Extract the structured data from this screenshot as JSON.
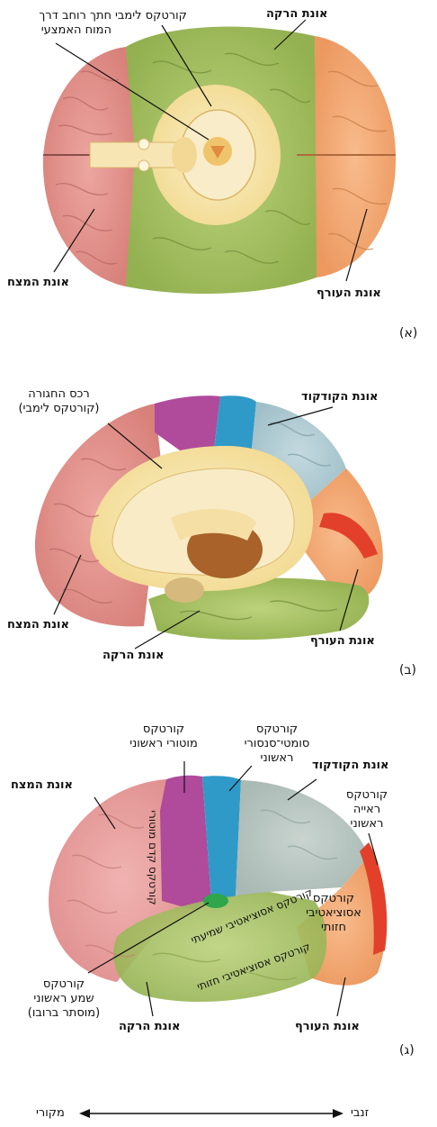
{
  "panelA": {
    "letter": "(א)",
    "labels": {
      "midbrain": [
        "חתך רוחב דרך",
        "המוח האמצעי"
      ],
      "limbic": "קורטקס לימבי",
      "temporal": "אונת הרקה",
      "frontal": "אונת המצח",
      "occipital": "אונת העורף"
    }
  },
  "panelB": {
    "letter": "(ב)",
    "labels": {
      "cingulate": [
        "רכס החגורה",
        "(קורטקס לימבי)"
      ],
      "parietal": "אונת הקודקוד",
      "frontal": "אונת המצח",
      "temporal": "אונת הרקה",
      "occipital": "אונת העורף"
    }
  },
  "panelC": {
    "letter": "(ג)",
    "labels": {
      "motor": [
        "קורטקס",
        "מוטורי ראשוני"
      ],
      "somato": [
        "קורטקס",
        "סומטי־סנסורי",
        "ראשוני"
      ],
      "frontal": "אונת המצח",
      "parietal": "אונת הקודקוד",
      "visual": [
        "קורטקס",
        "ראייה",
        "ראשוני"
      ],
      "premotor": "קורטקס קדם מוטורי",
      "auditoryAssoc": "קורטקס אסוציאטיבי שמיעתי",
      "visualAssocOcc": [
        "קורטקס",
        "אסוציאטיבי",
        "חזותי"
      ],
      "visualAssocTemp": "קורטקס אסוציאטיבי חזותי",
      "auditory": [
        "קורטקס",
        "שמע ראשוני",
        "(מוסתר ברובו)"
      ],
      "temporal": "אונת הרקה",
      "occipital": "אונת העורף"
    }
  },
  "axis": {
    "left": "מקורי",
    "right": "זנבי"
  },
  "colors": {
    "frontal": "#e6918d",
    "temporal": "#a9c466",
    "occipital": "#f2a771",
    "parietal": "#a9c9d3",
    "limbic": "#f6e3a8",
    "motor": "#b0479a",
    "somato": "#2f9ac8",
    "visual": "#e2402a",
    "auditory": "#2fa64a"
  }
}
